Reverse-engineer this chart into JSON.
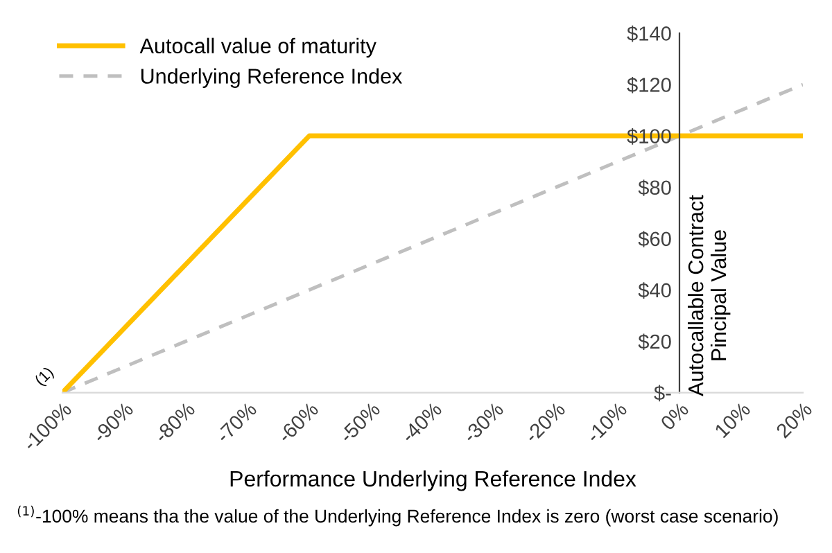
{
  "chart_data": {
    "type": "line",
    "xlabel": "Performance Underlying Reference Index",
    "ylabel": "Autocallable Contract\nPincipal Value",
    "xlim": [
      -100,
      20
    ],
    "xticks": [
      {
        "value": -100,
        "label": "-100%"
      },
      {
        "value": -90,
        "label": "-90%"
      },
      {
        "value": -80,
        "label": "-80%"
      },
      {
        "value": -70,
        "label": "-70%"
      },
      {
        "value": -60,
        "label": "-60%"
      },
      {
        "value": -50,
        "label": "-50%"
      },
      {
        "value": -40,
        "label": "-40%"
      },
      {
        "value": -30,
        "label": "-30%"
      },
      {
        "value": -20,
        "label": "-20%"
      },
      {
        "value": -10,
        "label": "-10%"
      },
      {
        "value": 0,
        "label": "0%"
      },
      {
        "value": 10,
        "label": "10%"
      },
      {
        "value": 20,
        "label": "20%"
      }
    ],
    "ylim": [
      0,
      140
    ],
    "yticks": [
      {
        "value": 0,
        "label": "$-"
      },
      {
        "value": 20,
        "label": "$20"
      },
      {
        "value": 40,
        "label": "$40"
      },
      {
        "value": 60,
        "label": "$60"
      },
      {
        "value": 80,
        "label": "$80"
      },
      {
        "value": 100,
        "label": "$100"
      },
      {
        "value": 120,
        "label": "$120"
      },
      {
        "value": 140,
        "label": "$140"
      }
    ],
    "series": [
      {
        "name": "Autocall value of maturity",
        "color": "#ffc000",
        "line_style": "solid",
        "x": [
          -100,
          -60,
          20
        ],
        "values": [
          0,
          100,
          100
        ]
      },
      {
        "name": "Underlying Reference Index",
        "color": "#bfbfbf",
        "line_style": "dashed",
        "x": [
          -100,
          20
        ],
        "values": [
          0,
          120
        ]
      }
    ],
    "annotations": [
      {
        "text": "(1)",
        "x": -100,
        "y": 0
      },
      "$^{(1)}$-100% means tha the value of the Underlying Reference Index is zero (worst case scenario)"
    ],
    "legend": "top left",
    "grid": false,
    "marker": "none"
  }
}
